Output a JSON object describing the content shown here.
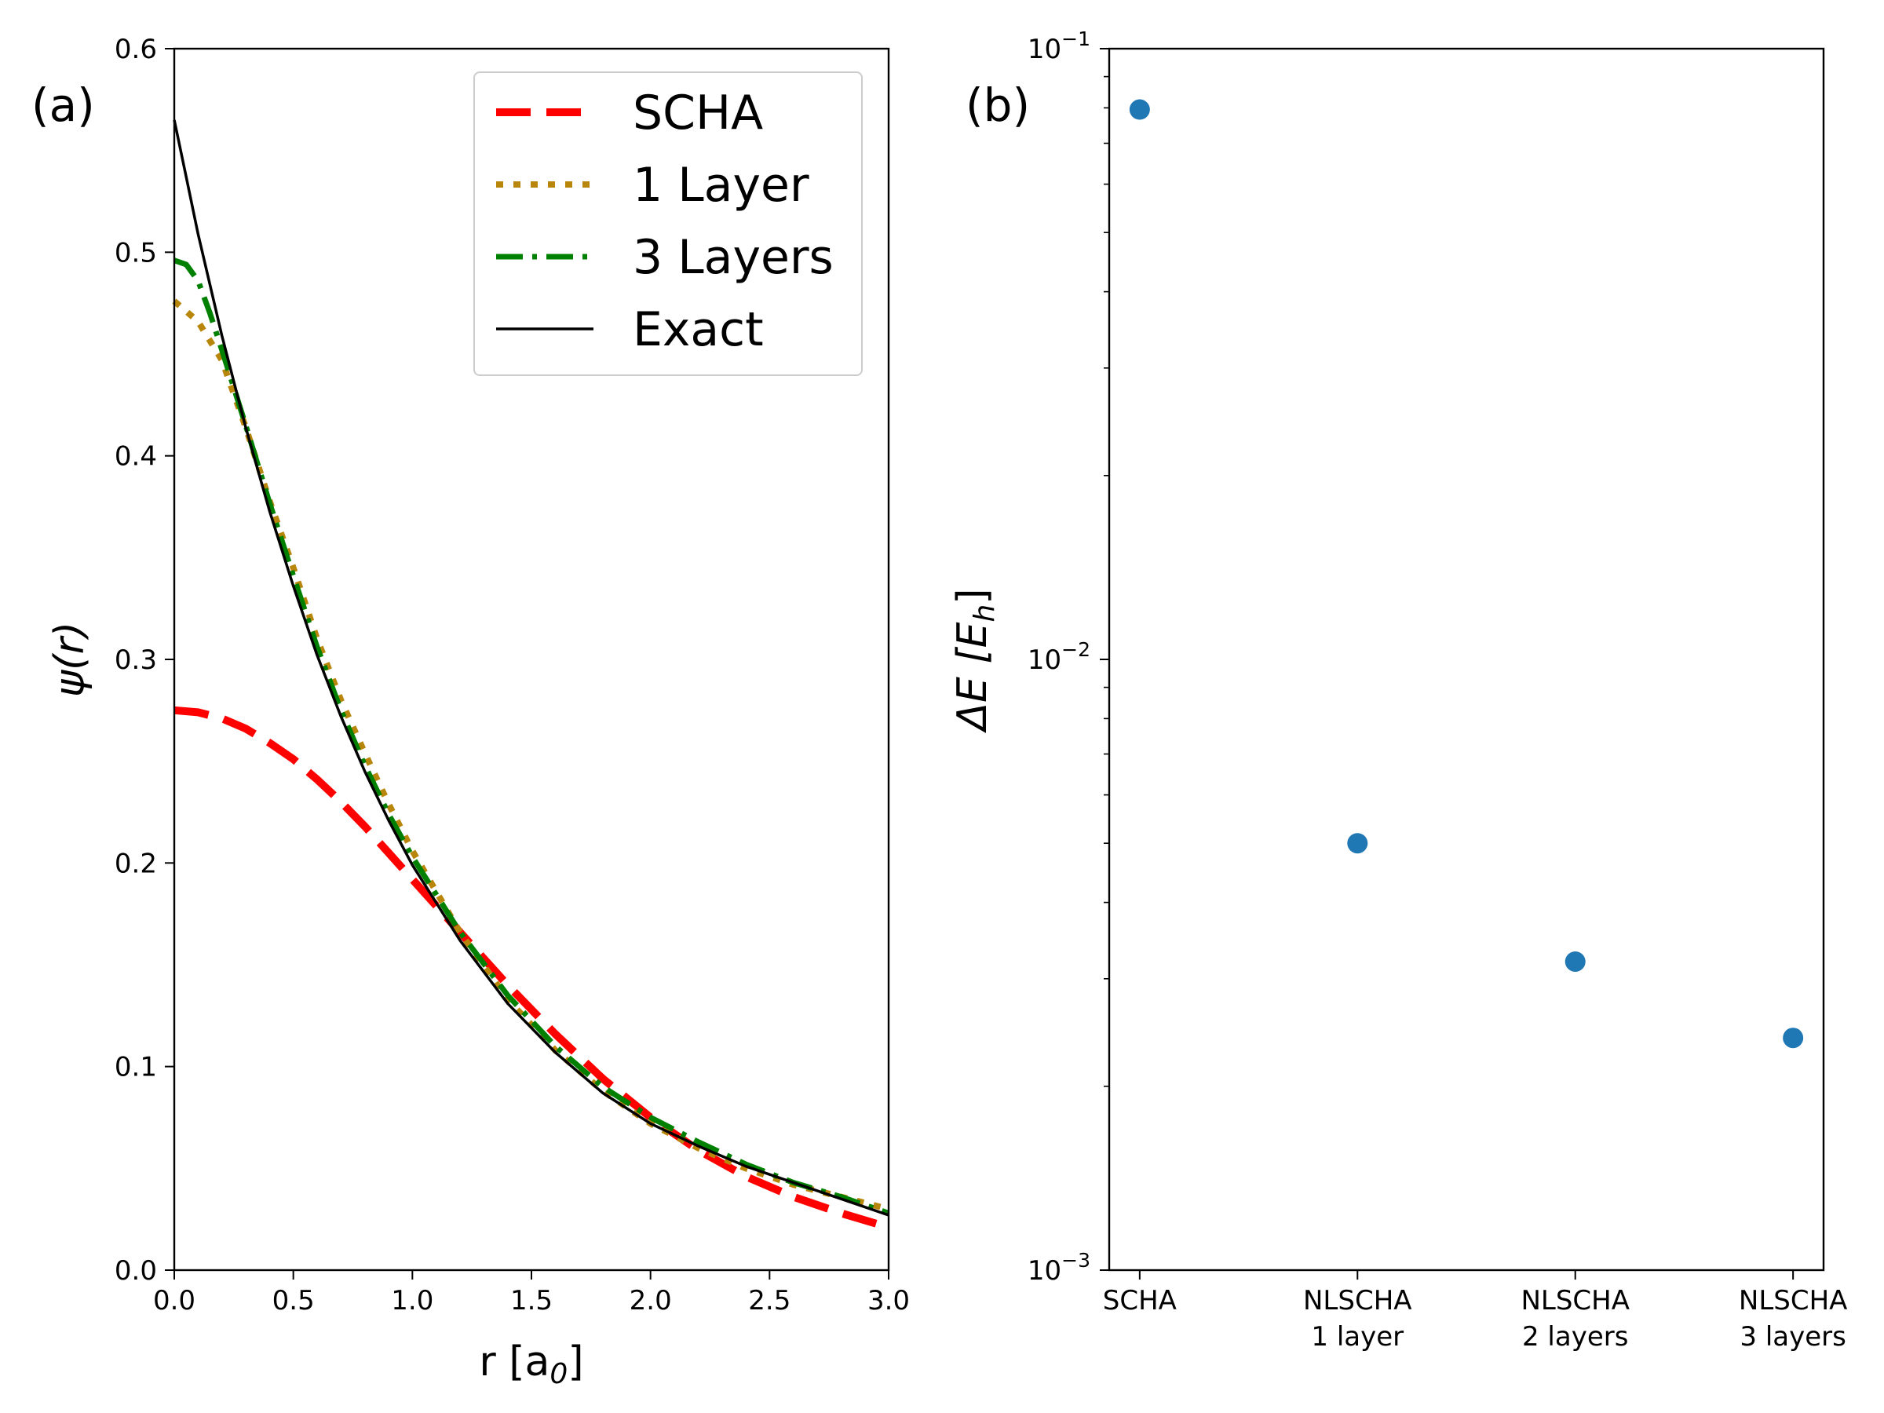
{
  "chart_data": [
    {
      "panel": "(a)",
      "type": "line",
      "xlabel": "r [a",
      "xlabel_sub": "0",
      "xlabel_end": "]",
      "ylabel": "ψ(r)",
      "xlim": [
        0.0,
        3.0
      ],
      "ylim": [
        0.0,
        0.6
      ],
      "xticks": [
        "0.0",
        "0.5",
        "1.0",
        "1.5",
        "2.0",
        "2.5",
        "3.0"
      ],
      "yticks": [
        "0.0",
        "0.1",
        "0.2",
        "0.3",
        "0.4",
        "0.5",
        "0.6"
      ],
      "legend_position": "top-right",
      "series": [
        {
          "name": "SCHA",
          "color": "#ff0000",
          "style": "dashed",
          "x": [
            0,
            0.1,
            0.2,
            0.3,
            0.4,
            0.5,
            0.6,
            0.7,
            0.8,
            0.9,
            1.0,
            1.2,
            1.4,
            1.6,
            1.8,
            2.0,
            2.2,
            2.4,
            2.6,
            2.8,
            3.0
          ],
          "y": [
            0.275,
            0.274,
            0.271,
            0.266,
            0.259,
            0.251,
            0.241,
            0.23,
            0.218,
            0.205,
            0.192,
            0.166,
            0.14,
            0.116,
            0.094,
            0.075,
            0.059,
            0.046,
            0.036,
            0.028,
            0.021
          ]
        },
        {
          "name": "1 Layer",
          "color": "#b8860b",
          "style": "dotted",
          "x": [
            0,
            0.1,
            0.2,
            0.3,
            0.4,
            0.5,
            0.6,
            0.7,
            0.8,
            0.9,
            1.0,
            1.2,
            1.4,
            1.6,
            1.8,
            2.0,
            2.2,
            2.4,
            2.6,
            2.8,
            3.0
          ],
          "y": [
            0.476,
            0.466,
            0.447,
            0.414,
            0.378,
            0.345,
            0.31,
            0.28,
            0.254,
            0.229,
            0.206,
            0.166,
            0.133,
            0.108,
            0.088,
            0.072,
            0.06,
            0.05,
            0.042,
            0.036,
            0.03
          ]
        },
        {
          "name": "3 Layers",
          "color": "#008000",
          "style": "dashdot",
          "x": [
            0,
            0.05,
            0.1,
            0.15,
            0.2,
            0.3,
            0.4,
            0.5,
            0.6,
            0.7,
            0.8,
            0.9,
            1.0,
            1.2,
            1.4,
            1.6,
            1.8,
            2.0,
            2.2,
            2.4,
            2.6,
            2.8,
            3.0
          ],
          "y": [
            0.496,
            0.494,
            0.486,
            0.47,
            0.452,
            0.415,
            0.377,
            0.341,
            0.306,
            0.275,
            0.248,
            0.224,
            0.203,
            0.166,
            0.135,
            0.11,
            0.09,
            0.075,
            0.063,
            0.052,
            0.043,
            0.036,
            0.028
          ]
        },
        {
          "name": "Exact",
          "color": "#000000",
          "style": "solid",
          "x": [
            0,
            0.05,
            0.1,
            0.15,
            0.2,
            0.3,
            0.4,
            0.5,
            0.6,
            0.7,
            0.8,
            0.9,
            1.0,
            1.2,
            1.4,
            1.6,
            1.8,
            2.0,
            2.2,
            2.4,
            2.6,
            2.8,
            3.0
          ],
          "y": [
            0.565,
            0.537,
            0.509,
            0.484,
            0.459,
            0.414,
            0.373,
            0.336,
            0.302,
            0.272,
            0.245,
            0.221,
            0.199,
            0.162,
            0.131,
            0.107,
            0.087,
            0.072,
            0.061,
            0.051,
            0.043,
            0.035,
            0.027
          ]
        }
      ]
    },
    {
      "panel": "(b)",
      "type": "scatter",
      "ylabel": "ΔE [E",
      "ylabel_sub": "h",
      "ylabel_end": "]",
      "yscale": "log",
      "ylim": [
        0.001,
        0.1
      ],
      "yticks": [
        {
          "base": "10",
          "exp": "−1",
          "value": 0.1
        },
        {
          "base": "10",
          "exp": "−2",
          "value": 0.01
        },
        {
          "base": "10",
          "exp": "−3",
          "value": 0.001
        }
      ],
      "color": "#1f77b4",
      "categories": [
        {
          "line1": "SCHA",
          "line2": ""
        },
        {
          "line1": "NLSCHA",
          "line2": "1 layer"
        },
        {
          "line1": "NLSCHA",
          "line2": "2 layers"
        },
        {
          "line1": "NLSCHA",
          "line2": "3 layers"
        }
      ],
      "values": [
        0.0795,
        0.005,
        0.0032,
        0.0024
      ]
    }
  ]
}
